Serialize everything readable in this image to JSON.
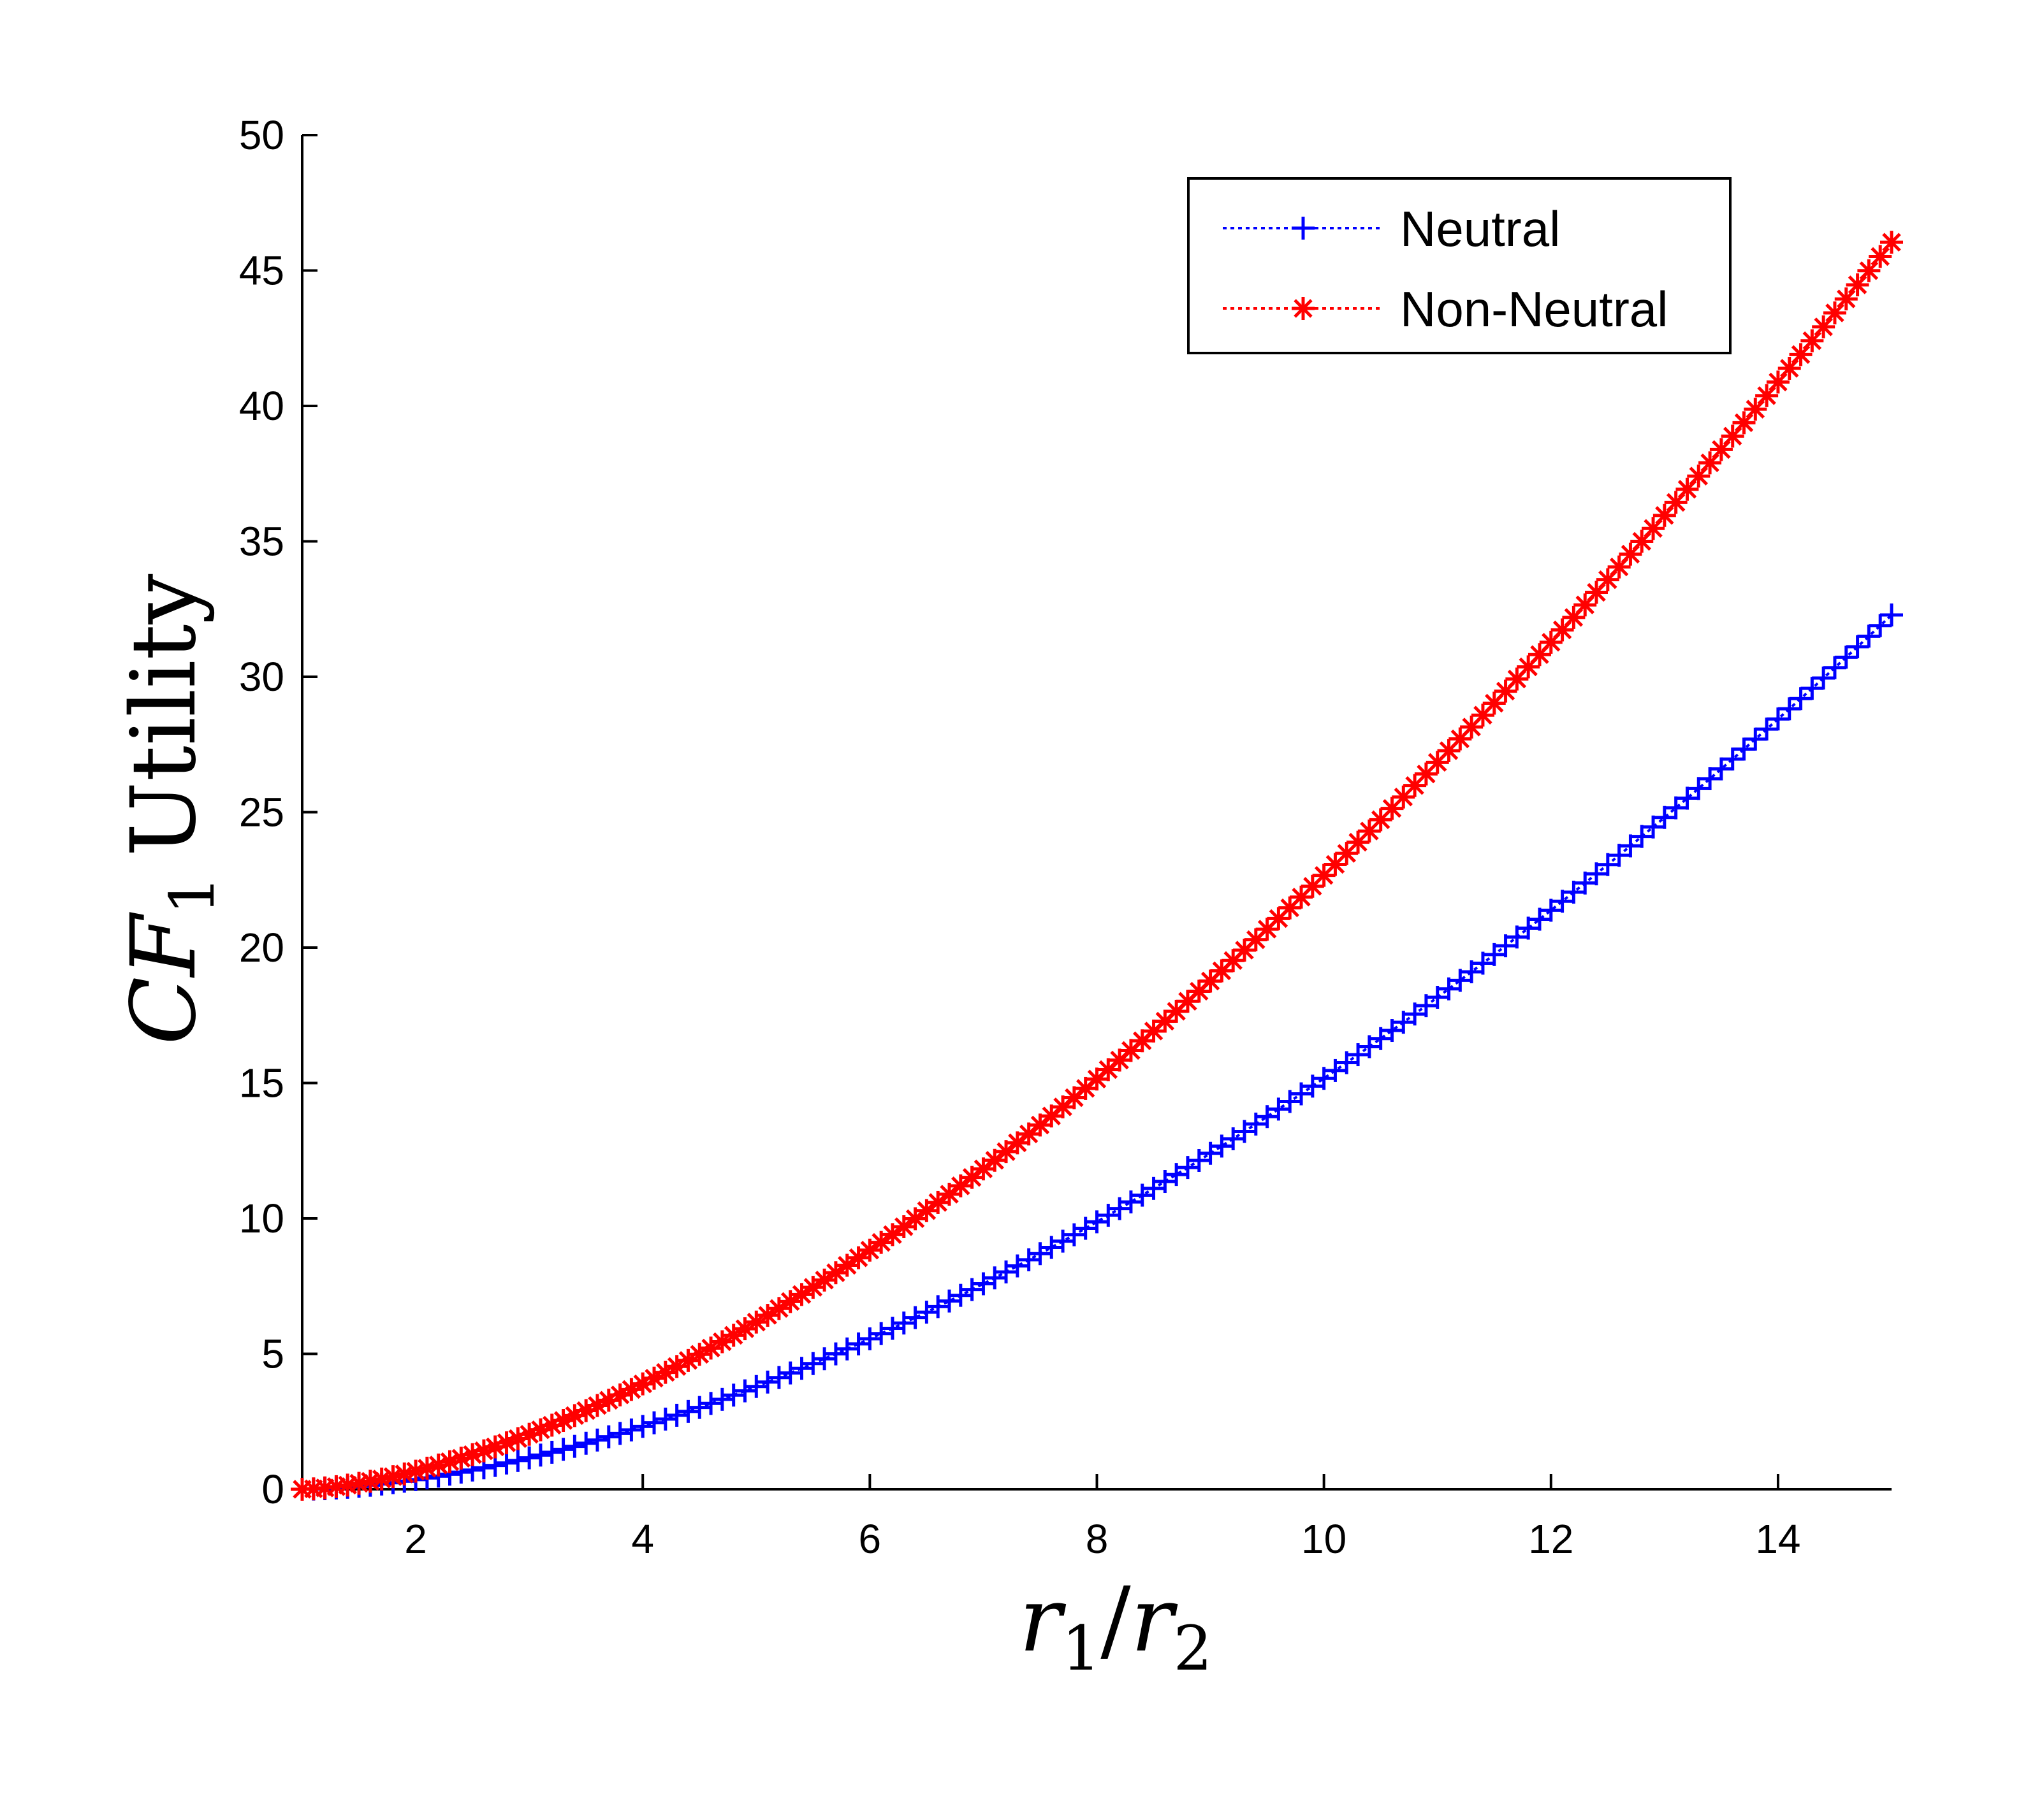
{
  "chart_data": {
    "type": "line",
    "xlabel": {
      "var": "r",
      "sub1": "1",
      "slash": "/",
      "var2": "r",
      "sub2": "2"
    },
    "ylabel": {
      "var": "CF",
      "sub": "1",
      "text": "Utility"
    },
    "xlim": [
      1,
      15
    ],
    "ylim": [
      0,
      50
    ],
    "xticks": [
      2,
      4,
      6,
      8,
      10,
      12,
      14
    ],
    "yticks": [
      0,
      5,
      10,
      15,
      20,
      25,
      30,
      35,
      40,
      45,
      50
    ],
    "grid": false,
    "legend": {
      "position": "top-right"
    },
    "series": [
      {
        "name": "Neutral",
        "color": "#0000ff",
        "marker": "plus",
        "line_style": "dotted",
        "x_start": 1,
        "x_end": 15,
        "x_step": 0.1,
        "model": "a*(x-1)^p",
        "a": 0.355,
        "p": 1.709
      },
      {
        "name": "Non-Neutral",
        "color": "#ff0000",
        "marker": "asterisk",
        "line_style": "dotted",
        "x_start": 1,
        "x_end": 15,
        "x_step": 0.1,
        "model": "a*(x-1)^p",
        "a": 0.668,
        "p": 1.604
      }
    ]
  }
}
